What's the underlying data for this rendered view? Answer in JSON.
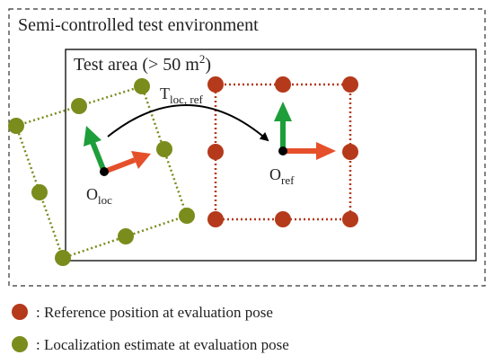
{
  "environment": {
    "title": "Semi-controlled test environment"
  },
  "test_area": {
    "title_main": "Test area (> 50 m",
    "title_sup": "2",
    "title_end": ")"
  },
  "transform": {
    "main": "T",
    "sub": "loc, ref"
  },
  "origin_loc": {
    "main": "O",
    "sub": "loc"
  },
  "origin_ref": {
    "main": "O",
    "sub": "ref"
  },
  "legend": {
    "items": [
      {
        "label": ": Reference position at evaluation pose"
      },
      {
        "label": ": Localization estimate at evaluation pose"
      }
    ]
  }
}
